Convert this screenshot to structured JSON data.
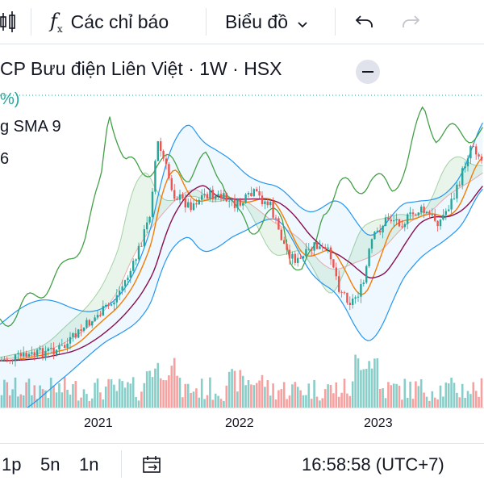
{
  "toolbar": {
    "indicators_label": "Các chỉ báo",
    "chart_type_label": "Biểu đồ",
    "icons": [
      "candles-icon",
      "function-icon",
      "chevron-down-icon",
      "undo-icon",
      "redo-icon"
    ]
  },
  "legend": {
    "title": "CP Bưu điện Liên Việt · 1W · HSX",
    "change_fragment": "%)",
    "indicator_fragment": "g SMA 9",
    "value_fragment": "6"
  },
  "xaxis": {
    "labels": [
      "2021",
      "2022",
      "2023"
    ]
  },
  "bottombar": {
    "intervals": [
      "1p",
      "5n",
      "1n"
    ],
    "time": "16:58:58 (UTC+7)",
    "icons": [
      "date-range-icon"
    ]
  },
  "colors": {
    "up": "#26a69a",
    "down": "#ef5350",
    "bollinger": "#2196f3",
    "sma": "#f57c00",
    "lagging": "#43a047",
    "base": "#880e4f"
  }
}
